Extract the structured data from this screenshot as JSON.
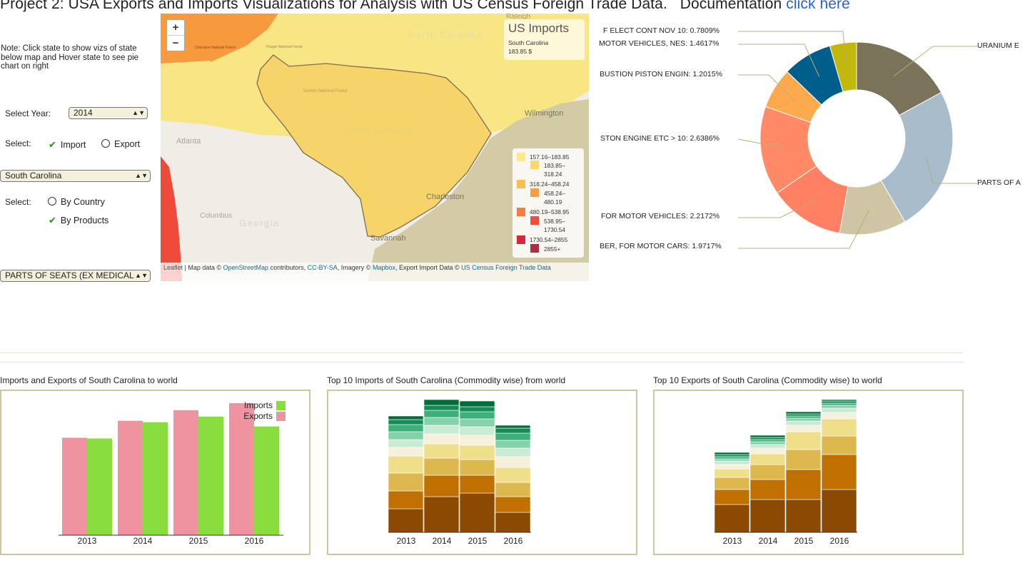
{
  "header": {
    "title": "Project 2: USA Exports and Imports Visualizations for Analysis with US Census Foreign Trade Data.",
    "doc_label": "Documentation",
    "doc_link": "click here"
  },
  "sidebar": {
    "note": "Note: Click state to show vizs of state below map and Hover state to see pie chart on right",
    "year_label": "Select Year:",
    "year_value": "2014",
    "flow_label": "Select:",
    "import_label": "Import",
    "export_label": "Export",
    "state_value": "South Carolina",
    "view_label": "Select:",
    "by_country_label": "By Country",
    "by_products_label": "By Products",
    "product_value": "PARTS OF SEATS (EX MEDICAL"
  },
  "map": {
    "zoom_in": "+",
    "zoom_out": "−",
    "info_title": "US Imports",
    "info_state": "South Carolina",
    "info_value": "183.85 $",
    "places": {
      "raleigh": "Raleigh",
      "north_carolina": "North Carolina",
      "wilmington": "Wilmington",
      "atlanta": "Atlanta",
      "south_carolina": "South Carolina",
      "charleston": "Charleston",
      "columbus": "Columbus",
      "georgia": "Georgia",
      "savannah": "Savannah",
      "cherokee": "Cherokee National Forest",
      "pisgah": "Pisgah National Forest",
      "sumter": "Sumter National Forest"
    },
    "legend": [
      {
        "label": "157.16–183.85",
        "color": "#fde98a"
      },
      {
        "label": "183.85–318.24",
        "color": "#fcd86a"
      },
      {
        "label": "318.24–458.24",
        "color": "#fbbf4f"
      },
      {
        "label": "458.24–480.19",
        "color": "#f99d45"
      },
      {
        "label": "480.19–538.95",
        "color": "#f67d3f"
      },
      {
        "label": "538.95–1730.54",
        "color": "#f04c3b"
      },
      {
        "label": "1730.54–2855",
        "color": "#d7263d"
      },
      {
        "label": "2855+",
        "color": "#ad2d45"
      }
    ],
    "attribution": {
      "leaflet": "Leaflet",
      "t1": " | Map data © ",
      "osm": "OpenStreetMap",
      "t2": " contributors, ",
      "cc": "CC-BY-SA",
      "t3": ", Imagery © ",
      "mapbox": "Mapbox",
      "t4": ", Export Import Data © ",
      "census": "US Census Foreign Trade Data"
    }
  },
  "pie": {
    "chart_data": {
      "type": "pie",
      "style": "donut",
      "slices": [
        {
          "label": "URANIUM E",
          "value": 16.0,
          "color": "#7a735a"
        },
        {
          "label": "PARTS OF A",
          "value": 23.0,
          "color": "#a8bccc"
        },
        {
          "label": "...BER, FOR MOTOR CARS: 1.9717%",
          "value": 10.5,
          "color": "#cfc5a5"
        },
        {
          "label": "... FOR MOTOR VEHICLES: 2.2172%",
          "value": 11.8,
          "color": "#ff8062"
        },
        {
          "label": "...STON ENGINE ETC > 10: 2.6386%",
          "value": 14.0,
          "color": "#ff8a65"
        },
        {
          "label": "...BUSTION PISTON ENGIN: 1.2015%",
          "value": 6.4,
          "color": "#fda94e"
        },
        {
          "label": "...MOTOR VEHICLES, NES: 1.4617%",
          "value": 7.8,
          "color": "#005f8a"
        },
        {
          "label": "...F ELECT CONT NOV 10: 0.7809%",
          "value": 4.2,
          "color": "#c2b80d"
        }
      ]
    },
    "labels": {
      "elect": "F ELECT CONT NOV 10: 0.7809%",
      "motor_nes": "MOTOR VEHICLES, NES: 1.4617%",
      "bustion": "BUSTION PISTON ENGIN: 1.2015%",
      "piston": "STON ENGINE ETC > 10: 2.6386%",
      "motor_veh": "FOR MOTOR VEHICLES: 2.2172%",
      "motor_cars": "BER, FOR MOTOR CARS: 1.9717%",
      "uranium": "URANIUM E",
      "parts": "PARTS OF A"
    }
  },
  "panels": {
    "p1_title": "Imports and Exports of South Carolina to world",
    "p2_title": "Top 10 Imports of South Carolina (Commodity wise) from world",
    "p3_title": "Top 10 Exports of South Carolina (Commodity wise) to world"
  },
  "chart_data": [
    {
      "type": "bar",
      "title": "Imports and Exports of South Carolina to world",
      "categories": [
        "2013",
        "2014",
        "2015",
        "2016"
      ],
      "series": [
        {
          "name": "Exports",
          "color": "#ef93a1",
          "values": [
            138,
            162,
            177,
            187
          ]
        },
        {
          "name": "Imports",
          "color": "#89dd3f",
          "values": [
            137,
            160,
            168,
            154
          ]
        }
      ],
      "ylim": [
        0,
        190
      ],
      "legend": [
        "Imports",
        "Exports"
      ]
    },
    {
      "type": "bar",
      "stacked": true,
      "title": "Top 10 Imports of South Carolina (Commodity wise) from world",
      "categories": [
        "2013",
        "2014",
        "2015",
        "2016"
      ],
      "colors": [
        "#8c4a00",
        "#bf7000",
        "#dcb84f",
        "#f0df8a",
        "#f5f1dd",
        "#c8ebd4",
        "#84d1aa",
        "#3fae7a",
        "#148c55",
        "#006d3a"
      ],
      "series_values": [
        [
          33,
          50,
          55,
          28
        ],
        [
          25,
          30,
          25,
          22
        ],
        [
          25,
          24,
          22,
          20
        ],
        [
          24,
          20,
          20,
          21
        ],
        [
          12,
          14,
          14,
          15
        ],
        [
          11,
          12,
          12,
          12
        ],
        [
          11,
          11,
          11,
          11
        ],
        [
          10,
          10,
          10,
          10
        ],
        [
          7,
          7,
          7,
          7
        ],
        [
          5,
          8,
          8,
          4
        ]
      ],
      "ylim": [
        0,
        184
      ]
    },
    {
      "type": "bar",
      "stacked": true,
      "title": "Top 10 Exports of South Carolina (Commodity wise) to world",
      "categories": [
        "2013",
        "2014",
        "2015",
        "2016"
      ],
      "colors": [
        "#8c4a00",
        "#bf7000",
        "#dcb84f",
        "#f0df8a",
        "#f5f1dd",
        "#c8ebd4",
        "#84d1aa",
        "#3fae7a",
        "#148c55",
        "#006d3a"
      ],
      "series_values": [
        [
          39,
          46,
          46,
          60
        ],
        [
          21,
          28,
          42,
          49
        ],
        [
          17,
          21,
          28,
          26
        ],
        [
          12,
          15,
          25,
          24
        ],
        [
          6,
          8,
          9,
          9
        ],
        [
          5,
          5,
          6,
          6
        ],
        [
          3,
          4,
          4,
          4
        ],
        [
          3,
          3,
          3,
          3
        ],
        [
          3,
          3,
          3,
          3
        ],
        [
          3,
          3,
          3,
          2
        ]
      ],
      "ylim": [
        0,
        184
      ]
    }
  ]
}
